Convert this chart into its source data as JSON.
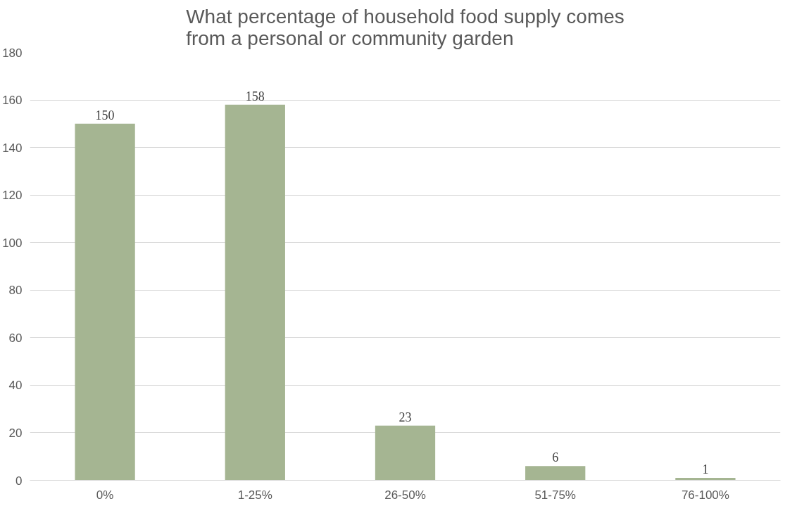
{
  "chart_data": {
    "type": "bar",
    "title": "What percentage of household food supply comes\nfrom a personal or community garden",
    "categories": [
      "0%",
      "1-25%",
      "26-50%",
      "51-75%",
      "76-100%"
    ],
    "values": [
      150,
      158,
      23,
      6,
      1
    ],
    "color": "#a5b592",
    "ylim": [
      0,
      180
    ],
    "yticks": [
      0,
      20,
      40,
      60,
      80,
      100,
      120,
      140,
      160,
      180
    ],
    "grid": "y",
    "data_labels": true
  }
}
